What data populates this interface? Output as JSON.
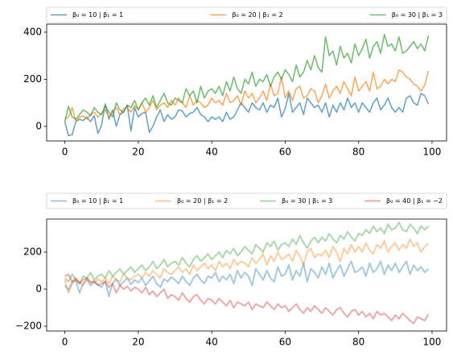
{
  "chart_data": [
    {
      "type": "line",
      "legend": "above",
      "legend_columns": 3,
      "line_width": 1.5,
      "xlim": [
        -4.95,
        103.95
      ],
      "ylim": [
        -62,
        434
      ],
      "xticks": [
        0,
        20,
        40,
        60,
        80,
        100
      ],
      "yticks": [
        0,
        200,
        400
      ],
      "x": [
        0,
        1,
        2,
        3,
        4,
        5,
        6,
        7,
        8,
        9,
        10,
        11,
        12,
        13,
        14,
        15,
        16,
        17,
        18,
        19,
        20,
        21,
        22,
        23,
        24,
        25,
        26,
        27,
        28,
        29,
        30,
        31,
        32,
        33,
        34,
        35,
        36,
        37,
        38,
        39,
        40,
        41,
        42,
        43,
        44,
        45,
        46,
        47,
        48,
        49,
        50,
        51,
        52,
        53,
        54,
        55,
        56,
        57,
        58,
        59,
        60,
        61,
        62,
        63,
        64,
        65,
        66,
        67,
        68,
        69,
        70,
        71,
        72,
        73,
        74,
        75,
        76,
        77,
        78,
        79,
        80,
        81,
        82,
        83,
        84,
        85,
        86,
        87,
        88,
        89,
        90,
        91,
        92,
        93,
        94,
        95,
        96,
        97,
        98,
        99
      ],
      "series": [
        {
          "name": "β₀ = 10 | β₁ = 1",
          "color": "rgba(31,119,180,0.7)",
          "values": [
            20,
            -40,
            -35,
            20,
            30,
            25,
            40,
            20,
            45,
            -30,
            5,
            95,
            30,
            70,
            0,
            50,
            60,
            90,
            -20,
            80,
            40,
            55,
            60,
            -25,
            0,
            40,
            70,
            20,
            50,
            30,
            40,
            70,
            65,
            40,
            55,
            60,
            80,
            50,
            40,
            20,
            40,
            30,
            40,
            20,
            60,
            30,
            40,
            70,
            100,
            80,
            60,
            100,
            80,
            70,
            100,
            60,
            90,
            80,
            120,
            40,
            75,
            140,
            60,
            80,
            100,
            50,
            120,
            100,
            80,
            90,
            60,
            100,
            40,
            90,
            60,
            100,
            70,
            120,
            80,
            100,
            60,
            100,
            80,
            60,
            100,
            120,
            70,
            90,
            120,
            80,
            60,
            80,
            60,
            120,
            130,
            100,
            90,
            140,
            130,
            95
          ]
        },
        {
          "name": "β₀ = 20 | β₁ = 2",
          "color": "rgba(255,127,14,0.7)",
          "values": [
            30,
            40,
            80,
            20,
            40,
            45,
            30,
            50,
            60,
            40,
            55,
            70,
            40,
            60,
            80,
            50,
            75,
            80,
            60,
            90,
            70,
            100,
            60,
            80,
            110,
            70,
            90,
            100,
            80,
            110,
            90,
            120,
            100,
            80,
            130,
            90,
            110,
            100,
            80,
            90,
            120,
            100,
            110,
            90,
            140,
            100,
            110,
            130,
            90,
            150,
            120,
            140,
            100,
            120,
            150,
            110,
            180,
            130,
            140,
            210,
            120,
            150,
            110,
            160,
            170,
            120,
            130,
            160,
            150,
            100,
            130,
            180,
            120,
            150,
            170,
            140,
            190,
            160,
            130,
            210,
            150,
            170,
            190,
            150,
            230,
            160,
            170,
            200,
            180,
            200,
            190,
            240,
            230,
            210,
            200,
            180,
            170,
            150,
            175,
            235
          ]
        },
        {
          "name": "β₀ = 30 | β₁ = 3",
          "color": "rgba(44,160,44,0.7)",
          "values": [
            20,
            85,
            40,
            30,
            50,
            70,
            60,
            45,
            80,
            60,
            50,
            90,
            60,
            40,
            100,
            70,
            60,
            90,
            80,
            110,
            70,
            100,
            120,
            90,
            130,
            80,
            110,
            140,
            100,
            90,
            120,
            110,
            100,
            160,
            130,
            150,
            100,
            170,
            120,
            150,
            160,
            140,
            170,
            130,
            190,
            150,
            210,
            160,
            140,
            200,
            180,
            230,
            170,
            200,
            190,
            220,
            170,
            210,
            230,
            200,
            240,
            220,
            190,
            260,
            210,
            230,
            280,
            240,
            300,
            250,
            230,
            380,
            300,
            320,
            260,
            340,
            290,
            310,
            270,
            350,
            300,
            330,
            370,
            290,
            340,
            360,
            310,
            390,
            340,
            350,
            320,
            380,
            310,
            320,
            340,
            360,
            330,
            350,
            320,
            385
          ]
        }
      ]
    },
    {
      "type": "line",
      "legend": "above",
      "legend_columns": 4,
      "line_width": 2,
      "xlim": [
        -4.95,
        103.95
      ],
      "ylim": [
        -226,
        378
      ],
      "xticks": [
        0,
        20,
        40,
        60,
        80,
        100
      ],
      "yticks": [
        {
          "value": -200,
          "label": "−200"
        },
        0,
        200
      ],
      "x": [
        0,
        1,
        2,
        3,
        4,
        5,
        6,
        7,
        8,
        9,
        10,
        11,
        12,
        13,
        14,
        15,
        16,
        17,
        18,
        19,
        20,
        21,
        22,
        23,
        24,
        25,
        26,
        27,
        28,
        29,
        30,
        31,
        32,
        33,
        34,
        35,
        36,
        37,
        38,
        39,
        40,
        41,
        42,
        43,
        44,
        45,
        46,
        47,
        48,
        49,
        50,
        51,
        52,
        53,
        54,
        55,
        56,
        57,
        58,
        59,
        60,
        61,
        62,
        63,
        64,
        65,
        66,
        67,
        68,
        69,
        70,
        71,
        72,
        73,
        74,
        75,
        76,
        77,
        78,
        79,
        80,
        81,
        82,
        83,
        84,
        85,
        86,
        87,
        88,
        89,
        90,
        91,
        92,
        93,
        94,
        95,
        96,
        97,
        98,
        99
      ],
      "series": [
        {
          "name": "β₀ = 10 | β₁ = 1",
          "color": "rgba(31,119,180,0.4)",
          "values": [
            20,
            -5,
            40,
            45,
            -20,
            30,
            50,
            20,
            40,
            25,
            10,
            45,
            -40,
            30,
            55,
            20,
            40,
            60,
            25,
            50,
            35,
            60,
            20,
            45,
            70,
            30,
            10,
            55,
            40,
            65,
            50,
            30,
            70,
            40,
            20,
            60,
            80,
            50,
            30,
            70,
            60,
            90,
            40,
            70,
            50,
            80,
            30,
            100,
            60,
            90,
            70,
            20,
            110,
            80,
            50,
            100,
            60,
            40,
            120,
            70,
            80,
            130,
            50,
            100,
            70,
            140,
            40,
            110,
            90,
            60,
            120,
            80,
            140,
            60,
            100,
            130,
            70,
            110,
            150,
            90,
            100,
            120,
            70,
            140,
            90,
            110,
            150,
            80,
            130,
            100,
            140,
            90,
            120,
            150,
            80,
            130,
            100,
            120,
            90,
            110
          ]
        },
        {
          "name": "β₀ = 20 | β₁ = 2",
          "color": "rgba(255,127,14,0.4)",
          "values": [
            50,
            -20,
            30,
            50,
            40,
            20,
            60,
            40,
            30,
            55,
            40,
            60,
            30,
            70,
            50,
            40,
            80,
            60,
            50,
            70,
            80,
            60,
            90,
            70,
            100,
            80,
            60,
            110,
            90,
            80,
            100,
            120,
            90,
            110,
            80,
            130,
            100,
            120,
            140,
            110,
            130,
            100,
            150,
            120,
            140,
            110,
            160,
            130,
            150,
            140,
            120,
            170,
            140,
            160,
            190,
            130,
            180,
            150,
            200,
            160,
            170,
            190,
            150,
            210,
            180,
            130,
            200,
            220,
            170,
            190,
            180,
            210,
            170,
            230,
            200,
            150,
            220,
            190,
            240,
            200,
            230,
            200,
            250,
            210,
            190,
            240,
            220,
            260,
            200,
            230,
            250,
            210,
            240,
            220,
            270,
            230,
            250,
            200,
            230,
            245
          ]
        },
        {
          "name": "β₀ = 30 | β₁ = 3",
          "color": "rgba(44,160,44,0.4)",
          "values": [
            60,
            40,
            80,
            50,
            30,
            70,
            60,
            90,
            50,
            70,
            80,
            60,
            100,
            70,
            90,
            110,
            80,
            100,
            120,
            90,
            110,
            130,
            100,
            120,
            150,
            110,
            130,
            160,
            120,
            140,
            150,
            130,
            170,
            140,
            120,
            160,
            180,
            150,
            170,
            190,
            160,
            180,
            200,
            170,
            210,
            190,
            220,
            180,
            200,
            230,
            210,
            190,
            240,
            220,
            200,
            250,
            230,
            260,
            210,
            240,
            250,
            230,
            270,
            240,
            290,
            250,
            220,
            260,
            280,
            250,
            280,
            260,
            300,
            270,
            250,
            290,
            270,
            310,
            280,
            260,
            300,
            290,
            320,
            300,
            340,
            310,
            330,
            300,
            350,
            320,
            330,
            360,
            320,
            310,
            350,
            330,
            300,
            340,
            320,
            340
          ]
        },
        {
          "name": "β₀ = 40 | β₁ = −2",
          "color": "rgba(214,39,40,0.4)",
          "values": [
            70,
            80,
            40,
            60,
            30,
            50,
            60,
            35,
            45,
            20,
            30,
            40,
            10,
            30,
            -20,
            20,
            0,
            15,
            -10,
            10,
            0,
            -20,
            10,
            -30,
            -10,
            -40,
            -20,
            0,
            -50,
            -30,
            -40,
            -60,
            -20,
            -50,
            -70,
            -40,
            -30,
            -60,
            -80,
            -50,
            -60,
            -80,
            -50,
            -70,
            -90,
            -60,
            -100,
            -70,
            -80,
            -90,
            -70,
            -110,
            -80,
            -90,
            -100,
            -70,
            -90,
            -110,
            -80,
            -100,
            -90,
            -120,
            -100,
            -80,
            -110,
            -130,
            -100,
            -120,
            -90,
            -110,
            -130,
            -100,
            -120,
            -140,
            -110,
            -100,
            -130,
            -150,
            -120,
            -110,
            -140,
            -120,
            -150,
            -130,
            -160,
            -120,
            -140,
            -130,
            -150,
            -170,
            -140,
            -160,
            -130,
            -150,
            -170,
            -185,
            -150,
            -160,
            -170,
            -135
          ]
        }
      ]
    }
  ]
}
